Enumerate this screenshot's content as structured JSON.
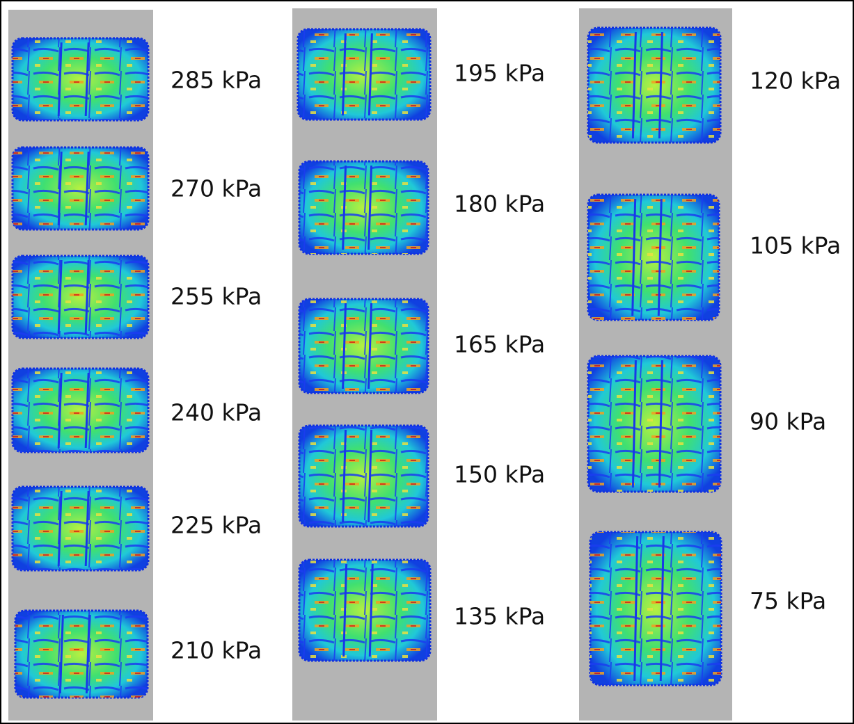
{
  "columns": [
    {
      "labels": [
        "285 kPa",
        "270 kPa",
        "255 kPa",
        "240 kPa",
        "225 kPa",
        "210 kPa"
      ]
    },
    {
      "labels": [
        "195 kPa",
        "180 kPa",
        "165 kPa",
        "150 kPa",
        "135 kPa"
      ]
    },
    {
      "labels": [
        "120 kPa",
        "105 kPa",
        "90 kPa",
        "75 kPa"
      ]
    }
  ]
}
